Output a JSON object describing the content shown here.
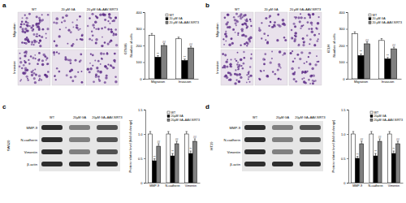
{
  "chart_data": [
    {
      "type": "bar",
      "ylabel": "Number of cells",
      "categories": [
        "Migration",
        "Invasion"
      ],
      "series": [
        {
          "name": "WT",
          "color": "#ffffff",
          "values": [
            260,
            240
          ],
          "errors": [
            12,
            10
          ]
        },
        {
          "name": "20 μM GA",
          "color": "#000000",
          "values": [
            130,
            110
          ],
          "errors": [
            9,
            8
          ],
          "significance": [
            "**",
            "**"
          ]
        },
        {
          "name": "20 μM GA+AAV-SIRT3",
          "color": "#808080",
          "values": [
            200,
            185
          ],
          "errors": [
            11,
            10
          ],
          "significance": [
            "##",
            "##"
          ]
        }
      ],
      "ylim": [
        0,
        400
      ],
      "yticks": [
        0,
        100,
        200,
        300,
        400
      ],
      "legend": "top-right"
    },
    {
      "type": "bar",
      "ylabel": "Number of cells",
      "categories": [
        "Migration",
        "Invasion"
      ],
      "series": [
        {
          "name": "WT",
          "color": "#ffffff",
          "values": [
            270,
            230
          ],
          "errors": [
            12,
            11
          ]
        },
        {
          "name": "20 μM GA",
          "color": "#000000",
          "values": [
            140,
            120
          ],
          "errors": [
            9,
            8
          ],
          "significance": [
            "**",
            "**"
          ]
        },
        {
          "name": "20 μM GA+AAV-SIRT3",
          "color": "#808080",
          "values": [
            210,
            180
          ],
          "errors": [
            11,
            10
          ],
          "significance": [
            "##",
            "##"
          ]
        }
      ],
      "ylim": [
        0,
        400
      ],
      "yticks": [
        0,
        100,
        200,
        300,
        400
      ],
      "legend": "top-right"
    },
    {
      "type": "bar",
      "ylabel": "Protein relative level (fold of change)",
      "categories": [
        "MMP-9",
        "N-cadherin",
        "Vimentin"
      ],
      "series": [
        {
          "name": "WT",
          "color": "#ffffff",
          "values": [
            1,
            1,
            1
          ],
          "errors": [
            0.05,
            0.05,
            0.05
          ]
        },
        {
          "name": "20μM GA",
          "color": "#000000",
          "values": [
            0.45,
            0.55,
            0.6
          ],
          "errors": [
            0.04,
            0.05,
            0.05
          ],
          "significance": [
            "**",
            "**",
            "**"
          ]
        },
        {
          "name": "20μM GA+AAV-SIRT3",
          "color": "#808080",
          "values": [
            0.75,
            0.8,
            0.85
          ],
          "errors": [
            0.05,
            0.05,
            0.05
          ],
          "significance": [
            "##",
            "##",
            "##"
          ]
        }
      ],
      "ylim": [
        0,
        1.5
      ],
      "yticks": [
        0,
        0.5,
        {
          "value": 1,
          "label": "1.0"
        },
        {
          "value": 1.5,
          "label": "1.5"
        }
      ],
      "legend": "top-right"
    },
    {
      "type": "bar",
      "ylabel": "Protein relative level (fold of change)",
      "categories": [
        "MMP-9",
        "N-cadherin",
        "Vimentin"
      ],
      "series": [
        {
          "name": "WT",
          "color": "#ffffff",
          "values": [
            1,
            1,
            1
          ],
          "errors": [
            0.05,
            0.05,
            0.05
          ]
        },
        {
          "name": "20μM GA",
          "color": "#000000",
          "values": [
            0.5,
            0.55,
            0.6
          ],
          "errors": [
            0.04,
            0.05,
            0.05
          ],
          "significance": [
            "**",
            "**",
            "**"
          ]
        },
        {
          "name": "20μM GA+AAV-SIRT3",
          "color": "#808080",
          "values": [
            0.8,
            0.85,
            0.8
          ],
          "errors": [
            0.05,
            0.05,
            0.05
          ],
          "significance": [
            "##",
            "##",
            "##"
          ]
        }
      ],
      "ylim": [
        0,
        1.5
      ],
      "yticks": [
        0,
        0.5,
        {
          "value": 1,
          "label": "1.0"
        },
        {
          "value": 1.5,
          "label": "1.5"
        }
      ],
      "legend": "top-right"
    }
  ],
  "figure": {
    "panels": [
      {
        "label": "a",
        "cell_line": "SW620",
        "columns": [
          "WT",
          "20 μM GA",
          "20 μM GA+AAV-SIRT3"
        ],
        "rows": [
          "Migration",
          "Invasion"
        ]
      },
      {
        "label": "b",
        "cell_line": "HT29",
        "columns": [
          "WT",
          "20 μM GA",
          "20 μM GA+AAV-SIRT3"
        ],
        "rows": [
          "Migration",
          "Invasion"
        ]
      },
      {
        "label": "c",
        "cell_line": "SW620",
        "columns": [
          "WT",
          "20μM GA",
          "20μM GA+AAV-SIRT3"
        ],
        "rows": [
          "MMP-9",
          "N-cadherin",
          "Vimentin",
          "β-actin"
        ]
      },
      {
        "label": "d",
        "cell_line": "HT29",
        "columns": [
          "WT",
          "20μM GA",
          "20μM GA+AAV-SIRT3"
        ],
        "rows": [
          "MMP-9",
          "N-cadherin",
          "Vimentin",
          "β-actin"
        ]
      }
    ]
  }
}
